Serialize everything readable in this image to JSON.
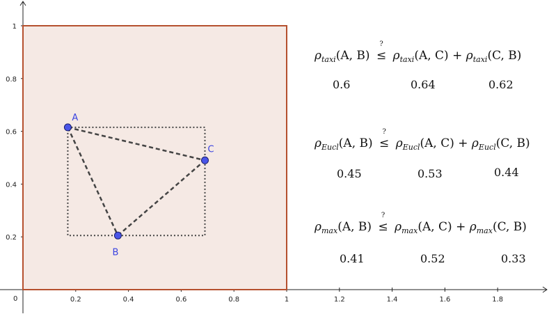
{
  "axes": {
    "x_ticks": [
      "0.2",
      "0.4",
      "0.6",
      "0.8",
      "1",
      "1.2",
      "1.4",
      "1.6",
      "1.8"
    ],
    "y_ticks": [
      "0.2",
      "0.4",
      "0.6",
      "0.8",
      "1"
    ],
    "origin": "0"
  },
  "region": {
    "fill": "#f5e9e4",
    "stroke": "#b5502e"
  },
  "points": [
    {
      "label": "A",
      "x": 0.17,
      "y": 0.615
    },
    {
      "label": "B",
      "x": 0.36,
      "y": 0.205
    },
    {
      "label": "C",
      "x": 0.69,
      "y": 0.49
    }
  ],
  "point_color": "#4a55e8",
  "formulas": {
    "taxi": {
      "lhs_rho": "ρ",
      "lhs_sub": "taxi",
      "lhs_args": "(A, B)",
      "rhs1_args": "(A, C)",
      "rhs2_args": "(C, B)",
      "plus": "+",
      "leq": "≤",
      "q": "?",
      "values": [
        "0.6",
        "0.64",
        "0.62"
      ]
    },
    "eucl": {
      "lhs_rho": "ρ",
      "lhs_sub": "Eucl",
      "lhs_args": "(A, B)",
      "rhs1_args": "(A, C)",
      "rhs2_args": "(C, B)",
      "plus": "+",
      "leq": "≤",
      "q": "?",
      "values": [
        "0.45",
        "0.53",
        "0.44"
      ]
    },
    "max": {
      "lhs_rho": "ρ",
      "lhs_sub": "max",
      "lhs_args": "(A, B)",
      "rhs1_args": "(A, C)",
      "rhs2_args": "(C, B)",
      "plus": "+",
      "leq": "≤",
      "q": "?",
      "values": [
        "0.41",
        "0.52",
        "0.33"
      ]
    }
  }
}
